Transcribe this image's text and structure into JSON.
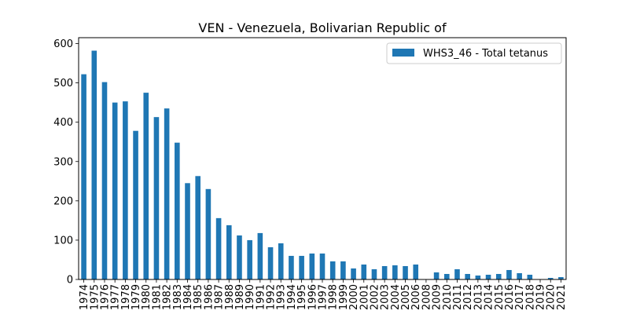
{
  "chart_data": {
    "type": "bar",
    "title": "VEN - Venezuela, Bolivarian Republic of",
    "xlabel": "",
    "ylabel": "",
    "ylim": [
      0,
      615
    ],
    "yticks": [
      0,
      100,
      200,
      300,
      400,
      500,
      600
    ],
    "grid": false,
    "legend_position": "top-right",
    "bar_color": "#1f77b4",
    "categories": [
      "1974",
      "1975",
      "1976",
      "1977",
      "1978",
      "1979",
      "1980",
      "1981",
      "1982",
      "1983",
      "1984",
      "1985",
      "1986",
      "1987",
      "1988",
      "1989",
      "1990",
      "1991",
      "1992",
      "1993",
      "1994",
      "1995",
      "1996",
      "1997",
      "1998",
      "1999",
      "2000",
      "2001",
      "2002",
      "2003",
      "2004",
      "2005",
      "2006",
      "2008",
      "2009",
      "2010",
      "2011",
      "2012",
      "2013",
      "2014",
      "2015",
      "2016",
      "2017",
      "2018",
      "2019",
      "2020",
      "2021"
    ],
    "series": [
      {
        "name": "WHS3_46 - Total tetanus",
        "values": [
          522,
          582,
          502,
          450,
          453,
          378,
          475,
          413,
          435,
          348,
          245,
          263,
          230,
          156,
          138,
          112,
          100,
          118,
          82,
          92,
          60,
          60,
          66,
          66,
          46,
          46,
          28,
          38,
          26,
          34,
          36,
          34,
          38,
          null,
          18,
          14,
          26,
          14,
          10,
          12,
          14,
          24,
          16,
          12,
          0,
          4,
          6
        ]
      }
    ]
  }
}
